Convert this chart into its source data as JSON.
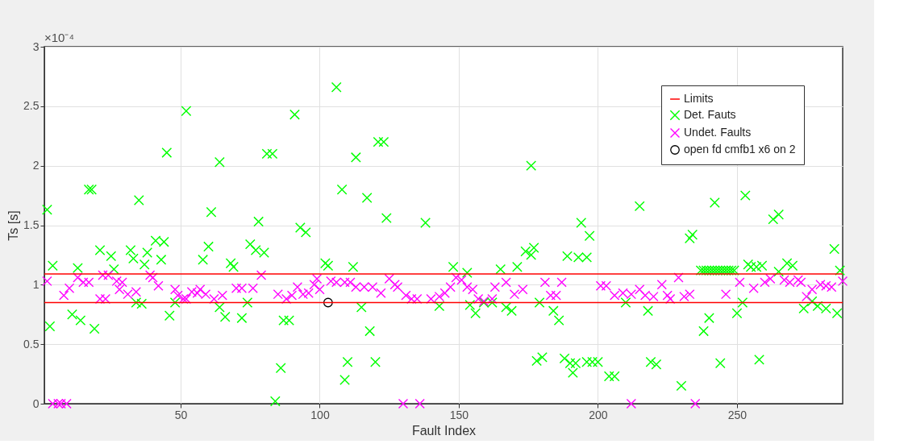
{
  "chart_data": {
    "type": "scatter",
    "xlabel": "Fault Index",
    "ylabel": "Ts [s]",
    "annotations": [
      "×10⁻⁴"
    ],
    "xlim": [
      1,
      288
    ],
    "xticks": [
      50,
      100,
      150,
      200,
      250
    ],
    "ylim": [
      0,
      3
    ],
    "yticks": [
      0,
      0.5,
      1,
      1.5,
      2,
      2.5,
      3
    ],
    "grid": true,
    "legend": "top right",
    "ref_lines": [
      {
        "axis": "y",
        "value": 1.09,
        "label": "Limits",
        "color": "#ff0000"
      },
      {
        "axis": "y",
        "value": 0.85,
        "color": "#ff0000"
      }
    ],
    "series": [
      {
        "name": "Det. Fauts",
        "color": "#00ff00",
        "marker": "cross",
        "x": [
          2,
          4,
          3,
          13,
          11,
          14,
          17,
          18,
          19,
          21,
          25,
          26,
          32,
          33,
          34,
          36,
          35,
          37,
          38,
          41,
          44,
          43,
          45,
          46,
          48,
          52,
          58,
          60,
          61,
          64,
          64,
          66,
          68,
          69,
          74,
          72,
          75,
          77,
          80,
          78,
          81,
          83,
          91,
          93,
          95,
          86,
          84,
          87,
          89,
          102,
          103,
          106,
          108,
          113,
          117,
          112,
          110,
          109,
          115,
          118,
          120,
          121,
          123,
          124,
          138,
          143,
          148,
          153,
          154,
          156,
          159,
          162,
          165,
          167,
          169,
          171,
          174,
          176,
          177,
          176,
          179,
          178,
          180,
          184,
          186,
          189,
          192,
          188,
          190,
          191,
          193,
          196,
          194,
          197,
          196,
          198,
          200,
          204,
          206,
          210,
          215,
          218,
          219,
          221,
          230,
          233,
          234,
          238,
          240,
          242,
          244,
          250,
          252,
          253,
          237,
          238,
          239,
          240,
          241,
          242,
          243,
          244,
          245,
          246,
          247,
          248,
          249,
          254,
          255,
          257,
          259,
          258,
          263,
          265,
          265,
          268,
          270,
          274,
          277,
          279,
          282,
          286,
          285,
          287
        ],
        "values": [
          1.63,
          1.16,
          0.65,
          1.14,
          0.75,
          0.7,
          1.8,
          1.8,
          0.63,
          1.29,
          1.24,
          1.13,
          1.29,
          1.22,
          0.85,
          0.84,
          1.71,
          1.17,
          1.27,
          1.37,
          1.36,
          1.21,
          2.11,
          0.74,
          0.85,
          2.46,
          1.21,
          1.32,
          1.61,
          2.03,
          0.81,
          0.73,
          1.18,
          1.15,
          0.85,
          0.72,
          1.34,
          1.29,
          1.27,
          1.53,
          2.1,
          2.1,
          2.43,
          1.48,
          1.44,
          0.3,
          0.02,
          0.7,
          0.7,
          1.18,
          1.16,
          2.66,
          1.8,
          2.07,
          1.73,
          1.15,
          0.35,
          0.2,
          0.81,
          0.61,
          0.35,
          2.2,
          2.2,
          1.56,
          1.52,
          0.82,
          1.15,
          1.1,
          0.83,
          0.76,
          0.85,
          0.85,
          1.13,
          0.81,
          0.78,
          1.15,
          1.28,
          1.25,
          1.31,
          2.0,
          0.85,
          0.36,
          0.39,
          0.78,
          0.7,
          1.24,
          0.34,
          0.38,
          0.34,
          0.26,
          1.23,
          1.23,
          1.52,
          1.41,
          0.35,
          0.35,
          0.35,
          0.23,
          0.23,
          0.85,
          1.66,
          0.78,
          0.35,
          0.33,
          0.15,
          1.39,
          1.42,
          0.61,
          0.72,
          1.69,
          0.34,
          0.76,
          0.85,
          1.75,
          1.12,
          1.12,
          1.12,
          1.12,
          1.12,
          1.12,
          1.12,
          1.12,
          1.12,
          1.12,
          1.12,
          1.12,
          1.12,
          1.17,
          1.15,
          1.15,
          1.16,
          0.37,
          1.55,
          1.59,
          1.11,
          1.18,
          1.16,
          0.8,
          0.86,
          0.82,
          0.8,
          0.76,
          1.3,
          1.12
        ]
      },
      {
        "name": "Undet. Faults",
        "color": "#ff00ff",
        "marker": "cross",
        "x": [
          2,
          4,
          6,
          7,
          9,
          8,
          10,
          13,
          15,
          17,
          21,
          23,
          22,
          24,
          27,
          28,
          29,
          31,
          34,
          39,
          40,
          42,
          48,
          49,
          51,
          52,
          54,
          56,
          57,
          59,
          62,
          65,
          70,
          72,
          76,
          79,
          85,
          88,
          90,
          92,
          94,
          96,
          98,
          99,
          100,
          104,
          106,
          109,
          111,
          113,
          116,
          119,
          122,
          125,
          127,
          128,
          131,
          133,
          135,
          130,
          136,
          140,
          143,
          145,
          147,
          149,
          151,
          153,
          155,
          157,
          159,
          162,
          163,
          167,
          170,
          173,
          181,
          183,
          185,
          187,
          201,
          203,
          206,
          209,
          212,
          212,
          215,
          217,
          220,
          223,
          225,
          226,
          229,
          231,
          233,
          235,
          246,
          251,
          256,
          260,
          262,
          267,
          269,
          272,
          273,
          275,
          277,
          280,
          282,
          284,
          288
        ],
        "values": [
          1.03,
          0,
          0,
          0,
          0,
          0.91,
          0.97,
          1.06,
          1.02,
          1.02,
          0.88,
          0.88,
          1.08,
          1.08,
          1.03,
          0.96,
          1.02,
          0.92,
          0.94,
          1.08,
          1.06,
          0.99,
          0.96,
          0.91,
          0.88,
          0.88,
          0.94,
          0.93,
          0.96,
          0.92,
          0.88,
          0.91,
          0.97,
          0.97,
          0.97,
          1.08,
          0.92,
          0.88,
          0.91,
          0.98,
          0.92,
          0.93,
          1.0,
          1.05,
          0.96,
          1.03,
          1.02,
          1.02,
          1.02,
          0.98,
          0.98,
          0.98,
          0.93,
          1.05,
          1.0,
          0.98,
          0.91,
          0.88,
          0.88,
          0,
          0,
          0.88,
          0.9,
          0.93,
          0.98,
          1.06,
          1.04,
          0.98,
          0.96,
          0.88,
          0.86,
          0.88,
          0.98,
          1.02,
          0.92,
          0.96,
          1.02,
          0.91,
          0.91,
          1.02,
          0.99,
          0.99,
          0.91,
          0.93,
          0.92,
          0,
          0.96,
          0.91,
          0.9,
          1.0,
          0.91,
          0.88,
          1.06,
          0.9,
          0.92,
          0,
          0.92,
          1.02,
          0.97,
          1.02,
          1.05,
          1.04,
          1.02,
          1.04,
          1.02,
          0.9,
          0.96,
          1.0,
          0.99,
          0.98,
          1.03
        ]
      },
      {
        "name": "open fd cmfb1 x6 on 2",
        "color": "#000000",
        "marker": "circle",
        "x": [
          103
        ],
        "values": [
          0.85
        ]
      }
    ]
  }
}
